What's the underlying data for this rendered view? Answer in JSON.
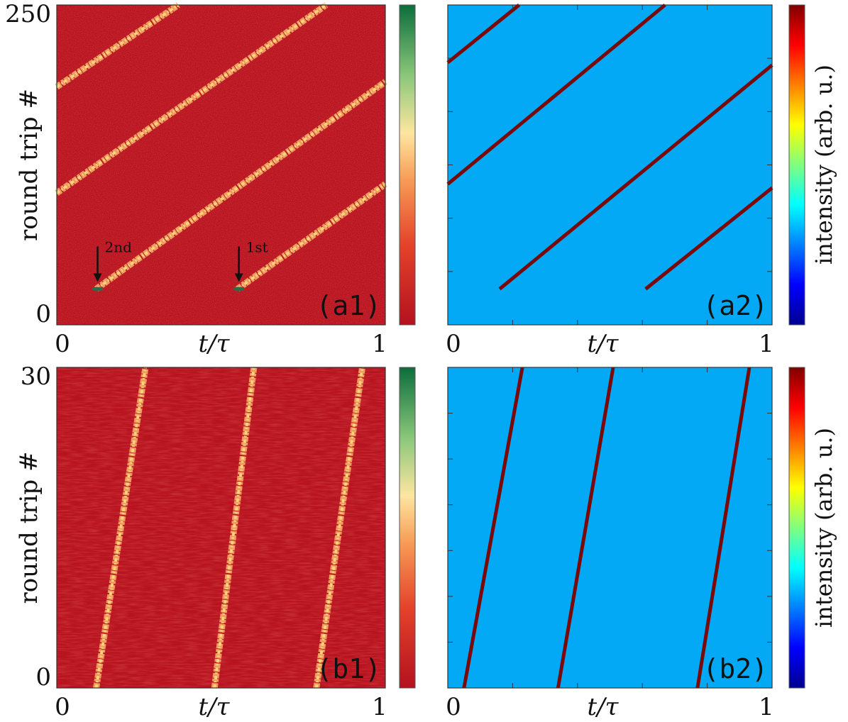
{
  "chart_data": [
    {
      "panel": "(a1)",
      "type": "heatmap",
      "xlabel": "t/τ",
      "ylabel": "round trip #",
      "x_ticks": [
        "0",
        "1"
      ],
      "y_ticks": [
        "0",
        "250"
      ],
      "xlim": [
        0,
        1
      ],
      "ylim": [
        0,
        250
      ],
      "colormap": "red-yellow-green",
      "annotations": [
        {
          "text": "2nd",
          "x": 0.12,
          "y": 28
        },
        {
          "text": "1st",
          "x": 0.55,
          "y": 28
        }
      ],
      "series": [
        {
          "name": "",
          "points": [
            [
              0.12,
              28
            ],
            [
              1.0,
              190
            ]
          ]
        },
        {
          "name": "",
          "points": [
            [
              0.55,
              28
            ],
            [
              1.0,
              110
            ]
          ]
        },
        {
          "name": "",
          "points": [
            [
              0.0,
              103
            ],
            [
              0.82,
              250
            ]
          ]
        },
        {
          "name": "",
          "points": [
            [
              0.0,
              186
            ],
            [
              0.37,
              250
            ]
          ]
        }
      ]
    },
    {
      "panel": "(a2)",
      "type": "heatmap",
      "xlabel": "t/τ",
      "ylabel": "",
      "x_ticks": [
        "0",
        "1"
      ],
      "xlim": [
        0,
        1
      ],
      "ylim": [
        0,
        250
      ],
      "colormap": "jet",
      "colorbar_label": "intensity (arb. u.)",
      "series": [
        {
          "name": "",
          "points": [
            [
              0.16,
              28
            ],
            [
              1.0,
              203
            ]
          ]
        },
        {
          "name": "",
          "points": [
            [
              0.61,
              28
            ],
            [
              1.0,
              107
            ]
          ]
        },
        {
          "name": "",
          "points": [
            [
              0.0,
              110
            ],
            [
              0.67,
              250
            ]
          ]
        },
        {
          "name": "",
          "points": [
            [
              0.0,
              205
            ],
            [
              0.22,
              250
            ]
          ]
        }
      ]
    },
    {
      "panel": "(b1)",
      "type": "heatmap",
      "xlabel": "t/τ",
      "ylabel": "round trip #",
      "x_ticks": [
        "0",
        "1"
      ],
      "y_ticks": [
        "0",
        "30"
      ],
      "xlim": [
        0,
        1
      ],
      "ylim": [
        0,
        30
      ],
      "colormap": "red-yellow-green",
      "series": [
        {
          "name": "",
          "points": [
            [
              0.12,
              0
            ],
            [
              0.27,
              30
            ]
          ]
        },
        {
          "name": "",
          "points": [
            [
              0.48,
              0
            ],
            [
              0.6,
              30
            ]
          ]
        },
        {
          "name": "",
          "points": [
            [
              0.79,
              0
            ],
            [
              0.93,
              30
            ]
          ]
        }
      ]
    },
    {
      "panel": "(b2)",
      "type": "heatmap",
      "xlabel": "t/τ",
      "ylabel": "",
      "x_ticks": [
        "0",
        "1"
      ],
      "xlim": [
        0,
        1
      ],
      "ylim": [
        0,
        30
      ],
      "colormap": "jet",
      "colorbar_label": "intensity (arb. u.)",
      "series": [
        {
          "name": "",
          "points": [
            [
              0.05,
              0
            ],
            [
              0.23,
              30
            ]
          ]
        },
        {
          "name": "",
          "points": [
            [
              0.34,
              0
            ],
            [
              0.51,
              30
            ]
          ]
        },
        {
          "name": "",
          "points": [
            [
              0.77,
              0
            ],
            [
              0.93,
              30
            ]
          ]
        }
      ]
    }
  ],
  "colors": {
    "bg_red": "#b81420",
    "streak_hot": "#ffd27a",
    "bg_blue": "#03a9f4",
    "line_dark_red": "#7a0a0a"
  }
}
